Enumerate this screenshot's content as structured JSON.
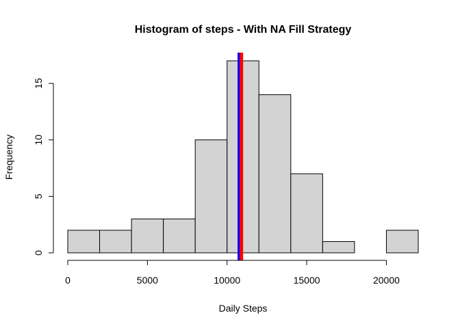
{
  "chart_data": {
    "type": "bar",
    "title": "Histogram of steps - With NA Fill Strategy",
    "xlabel": "Daily Steps",
    "ylabel": "Frequency",
    "bins": [
      {
        "start": 0,
        "end": 2000,
        "count": 2
      },
      {
        "start": 2000,
        "end": 4000,
        "count": 2
      },
      {
        "start": 4000,
        "end": 6000,
        "count": 3
      },
      {
        "start": 6000,
        "end": 8000,
        "count": 3
      },
      {
        "start": 8000,
        "end": 10000,
        "count": 10
      },
      {
        "start": 10000,
        "end": 12000,
        "count": 17
      },
      {
        "start": 12000,
        "end": 14000,
        "count": 14
      },
      {
        "start": 14000,
        "end": 16000,
        "count": 7
      },
      {
        "start": 16000,
        "end": 18000,
        "count": 1
      },
      {
        "start": 18000,
        "end": 20000,
        "count": 0
      },
      {
        "start": 20000,
        "end": 22000,
        "count": 2
      }
    ],
    "x_ticks": [
      0,
      5000,
      10000,
      15000,
      20000
    ],
    "x_tick_labels": [
      "0",
      "5000",
      "10000",
      "15000",
      "20000"
    ],
    "y_ticks": [
      0,
      5,
      10,
      15
    ],
    "y_tick_labels": [
      "0",
      "5",
      "10",
      "15"
    ],
    "xlim": [
      0,
      22000
    ],
    "ylim": [
      0,
      17
    ],
    "vertical_lines": [
      {
        "x": 10766,
        "color": "#0000ff"
      },
      {
        "x": 10900,
        "color": "#ff0000"
      }
    ],
    "bar_color": "#d3d3d3",
    "edge_color": "#000000",
    "grid": false
  }
}
